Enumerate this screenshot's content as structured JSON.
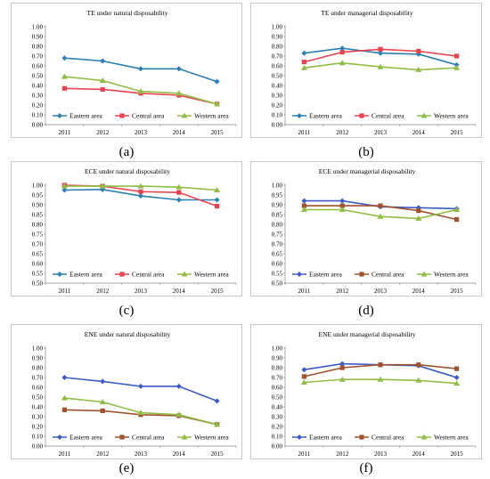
{
  "panel_letters": [
    "(a)",
    "(b)",
    "(c)",
    "(d)",
    "(e)",
    "(f)"
  ],
  "chart_data": [
    {
      "type": "line",
      "title": "TE under natural disposability",
      "x": [
        "2011",
        "2012",
        "2013",
        "2014",
        "2015"
      ],
      "yticks": [
        "0.00",
        "0.10",
        "0.20",
        "0.30",
        "0.40",
        "0.50",
        "0.60",
        "0.70",
        "0.80",
        "0.90",
        "1.00"
      ],
      "ylim": [
        0,
        1
      ],
      "series": [
        {
          "name": "Eastern area",
          "color": "#2a7fb5",
          "marker": "diamond",
          "values": [
            0.68,
            0.65,
            0.57,
            0.57,
            0.44
          ]
        },
        {
          "name": "Central area",
          "color": "#e8434f",
          "marker": "square",
          "values": [
            0.37,
            0.36,
            0.32,
            0.3,
            0.21
          ]
        },
        {
          "name": "Western area",
          "color": "#8fbe44",
          "marker": "triangle",
          "values": [
            0.49,
            0.45,
            0.34,
            0.32,
            0.21
          ]
        }
      ],
      "legend": "bottom"
    },
    {
      "type": "line",
      "title": "TE under managerial disposability",
      "x": [
        "2011",
        "2012",
        "2013",
        "2014",
        "2015"
      ],
      "yticks": [
        "0.00",
        "0.10",
        "0.20",
        "0.30",
        "0.40",
        "0.50",
        "0.60",
        "0.70",
        "0.80",
        "0.90",
        "1.00"
      ],
      "ylim": [
        0,
        1
      ],
      "series": [
        {
          "name": "Eastern area",
          "color": "#2a7fb5",
          "marker": "diamond",
          "values": [
            0.73,
            0.78,
            0.73,
            0.72,
            0.61
          ]
        },
        {
          "name": "Central area",
          "color": "#e8434f",
          "marker": "square",
          "values": [
            0.64,
            0.74,
            0.77,
            0.75,
            0.7
          ]
        },
        {
          "name": "Western area",
          "color": "#8fbe44",
          "marker": "triangle",
          "values": [
            0.58,
            0.63,
            0.59,
            0.56,
            0.58
          ]
        }
      ],
      "legend": "bottom"
    },
    {
      "type": "line",
      "title": "ECE under natural disposability",
      "x": [
        "2011",
        "2012",
        "2013",
        "2014",
        "2015"
      ],
      "yticks": [
        "0.50",
        "0.55",
        "0.60",
        "0.65",
        "0.70",
        "0.75",
        "0.80",
        "0.85",
        "0.90",
        "0.95",
        "1.00"
      ],
      "ylim": [
        0.5,
        1
      ],
      "series": [
        {
          "name": "Eastern area",
          "color": "#2a7fb5",
          "marker": "diamond",
          "values": [
            0.975,
            0.978,
            0.945,
            0.925,
            0.925
          ]
        },
        {
          "name": "Central area",
          "color": "#e8434f",
          "marker": "square",
          "values": [
            1.0,
            0.995,
            0.967,
            0.963,
            0.893
          ]
        },
        {
          "name": "Western area",
          "color": "#8fbe44",
          "marker": "triangle",
          "values": [
            0.995,
            0.995,
            0.995,
            0.99,
            0.975
          ]
        }
      ],
      "legend": "bottom"
    },
    {
      "type": "line",
      "title": "ECE under managerial disposability",
      "x": [
        "2011",
        "2012",
        "2013",
        "2014",
        "2015"
      ],
      "yticks": [
        "0.50",
        "0.55",
        "0.60",
        "0.65",
        "0.70",
        "0.75",
        "0.80",
        "0.85",
        "0.90",
        "0.95",
        "1.00"
      ],
      "ylim": [
        0.5,
        1
      ],
      "series": [
        {
          "name": "Eastern area",
          "color": "#3b5cc4",
          "marker": "diamond",
          "values": [
            0.92,
            0.92,
            0.89,
            0.885,
            0.88
          ]
        },
        {
          "name": "Central area",
          "color": "#a0522d",
          "marker": "square",
          "values": [
            0.895,
            0.895,
            0.895,
            0.87,
            0.825
          ]
        },
        {
          "name": "Western area",
          "color": "#8fbe44",
          "marker": "triangle",
          "values": [
            0.875,
            0.875,
            0.84,
            0.83,
            0.875
          ]
        }
      ],
      "legend": "bottom"
    },
    {
      "type": "line",
      "title": "ENE under natural disposability",
      "x": [
        "2011",
        "2012",
        "2013",
        "2014",
        "2015"
      ],
      "yticks": [
        "0.00",
        "0.10",
        "0.20",
        "0.30",
        "0.40",
        "0.50",
        "0.60",
        "0.70",
        "0.80",
        "0.90",
        "1.00"
      ],
      "ylim": [
        0,
        1
      ],
      "series": [
        {
          "name": "Eastern area",
          "color": "#3b5cc4",
          "marker": "diamond",
          "values": [
            0.7,
            0.66,
            0.61,
            0.61,
            0.46
          ]
        },
        {
          "name": "Central area",
          "color": "#a0522d",
          "marker": "square",
          "values": [
            0.37,
            0.36,
            0.32,
            0.31,
            0.22
          ]
        },
        {
          "name": "Western area",
          "color": "#8fbe44",
          "marker": "triangle",
          "values": [
            0.49,
            0.45,
            0.34,
            0.32,
            0.22
          ]
        }
      ],
      "legend": "bottom"
    },
    {
      "type": "line",
      "title": "ENE under managerial disposability",
      "x": [
        "2011",
        "2012",
        "2013",
        "2014",
        "2015"
      ],
      "yticks": [
        "0.00",
        "0.10",
        "0.20",
        "0.30",
        "0.40",
        "0.50",
        "0.60",
        "0.70",
        "0.80",
        "0.90",
        "1.00"
      ],
      "ylim": [
        0,
        1
      ],
      "series": [
        {
          "name": "Eastern area",
          "color": "#3b5cc4",
          "marker": "diamond",
          "values": [
            0.78,
            0.84,
            0.83,
            0.82,
            0.7
          ]
        },
        {
          "name": "Central area",
          "color": "#a0522d",
          "marker": "square",
          "values": [
            0.71,
            0.8,
            0.83,
            0.83,
            0.79
          ]
        },
        {
          "name": "Western area",
          "color": "#8fbe44",
          "marker": "triangle",
          "values": [
            0.65,
            0.68,
            0.68,
            0.67,
            0.64
          ]
        }
      ],
      "legend": "bottom"
    }
  ]
}
